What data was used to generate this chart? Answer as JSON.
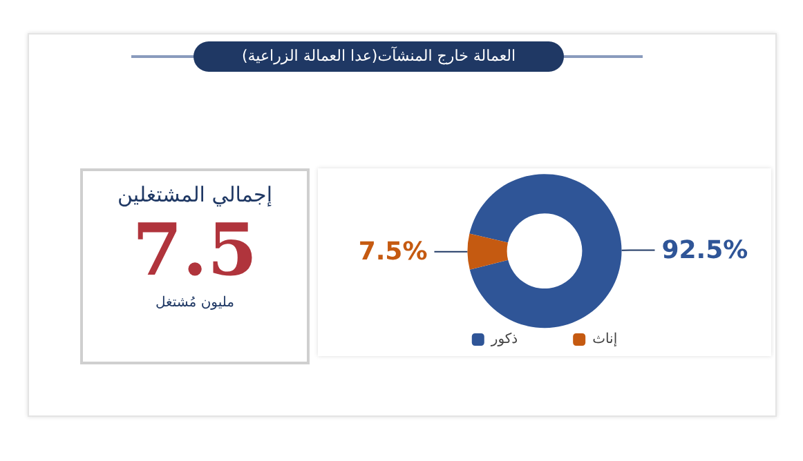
{
  "chart_data": [
    {
      "type": "other",
      "title": "إجمالي المشتغلين",
      "annotations": [
        "7.5",
        "مليون مُشتغل"
      ]
    },
    {
      "type": "donut",
      "title": "العمالة خارج المنشآت(عدا العمالة الزراعية)",
      "categories": [
        "ذكور",
        "إناث"
      ],
      "values": [
        92.5,
        7.5
      ],
      "colors": [
        "#2f5597",
        "#c55a11"
      ],
      "value_labels": [
        "92.5%",
        "7.5%"
      ],
      "legend": "bottom"
    }
  ]
}
